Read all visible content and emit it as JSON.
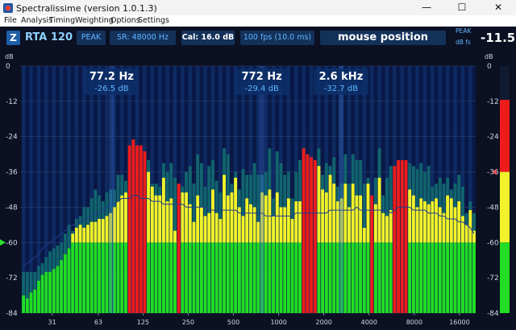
{
  "window": {
    "title": "Spectralissime (version 1.0.1.3)",
    "minimize_glyph": "—",
    "maximize_glyph": "☐",
    "close_glyph": "✕"
  },
  "menu": [
    "File",
    "Analysis",
    "Timing",
    "Weighting",
    "Options",
    "Settings"
  ],
  "toolbar": {
    "z_label": "Z",
    "rta_label": "RTA 120",
    "peak_button": "PEAK",
    "sample_rate": "SR: 48000 Hz",
    "calibration": "Cal:  16.0 dB",
    "fps": "100 fps (10.0 ms)",
    "mouse_position": "mouse position",
    "peak_label": "PEAK",
    "dbfs_label": "dB fs",
    "peak_value": "-11.5"
  },
  "colors": {
    "background": "#0d1428",
    "green": "#22dd22",
    "yellow": "#f2f22a",
    "red": "#ee1b1b",
    "teal": "#11646d",
    "accent": "#5fb6ff"
  },
  "chart_data": {
    "type": "bar",
    "x_scale": "log",
    "x_unit": "Hz",
    "xlim": [
      19,
      20500
    ],
    "ylim": [
      -84,
      0
    ],
    "y_unit": "dB",
    "y_ticks": [
      0,
      -12,
      -24,
      -36,
      -48,
      -60,
      -72,
      -84
    ],
    "x_tick_values": [
      31,
      63,
      125,
      250,
      500,
      1000,
      2000,
      4000,
      8000,
      16000
    ],
    "x_tick_labels": [
      "31",
      "63",
      "125",
      "250",
      "500",
      "1000",
      "2000",
      "4000",
      "8000",
      "16000"
    ],
    "axis_label": "dB",
    "green_threshold": -60,
    "yellow_threshold": -36,
    "num_bars": 120,
    "freq_start": 20,
    "freq_end": 20000,
    "bar_values": [
      -78,
      -79,
      -77,
      -76,
      -73,
      -71,
      -70,
      -70,
      -69,
      -68,
      -66,
      -64,
      -62,
      -57,
      -55,
      -54,
      -55,
      -54,
      -53,
      -53,
      -52,
      -52,
      -51,
      -50,
      -48,
      -46,
      -44,
      -43,
      -34,
      -35,
      -35,
      -34,
      -35,
      -36,
      -41,
      -44,
      -44,
      -38,
      -46,
      -45,
      -56,
      -55,
      -43,
      -43,
      -47,
      -53,
      -44,
      -48,
      -51,
      -50,
      -42,
      -50,
      -52,
      -37,
      -44,
      -43,
      -38,
      -48,
      -51,
      -45,
      -47,
      -48,
      -53,
      -43,
      -44,
      -42,
      -51,
      -43,
      -48,
      -48,
      -45,
      -52,
      -46,
      -46,
      -38,
      -32,
      -38,
      -46,
      -34,
      -42,
      -43,
      -37,
      -40,
      -46,
      -45,
      -40,
      -48,
      -40,
      -44,
      -44,
      -55,
      -40,
      -50,
      -47,
      -38,
      -50,
      -51,
      -49,
      -44,
      -34,
      -39,
      -36,
      -42,
      -44,
      -48,
      -45,
      -46,
      -47,
      -46,
      -45,
      -48,
      -50,
      -44,
      -45,
      -48,
      -46,
      -51,
      -54,
      -49,
      -56
    ],
    "peak_values": [
      -70,
      -70,
      -70,
      -70,
      -68,
      -67,
      -65,
      -63,
      -62,
      -61,
      -60,
      -57,
      -54,
      -56,
      -52,
      -51,
      -48,
      -48,
      -45,
      -42,
      -44,
      -46,
      -43,
      -42,
      -42,
      -37,
      -37,
      -39,
      -27,
      -25,
      -27,
      -27,
      -29,
      -32,
      -40,
      -40,
      -41,
      -33,
      -36,
      -33,
      -38,
      -40,
      -41,
      -36,
      -34,
      -40,
      -30,
      -33,
      -41,
      -34,
      -32,
      -39,
      -43,
      -28,
      -30,
      -40,
      -36,
      -42,
      -35,
      -37,
      -37,
      -33,
      -37,
      -37,
      -36,
      -28,
      -45,
      -29,
      -33,
      -37,
      -36,
      -45,
      -36,
      -32,
      -28,
      -30,
      -31,
      -32,
      -28,
      -37,
      -33,
      -34,
      -31,
      -41,
      -40,
      -30,
      -40,
      -30,
      -32,
      -32,
      -40,
      -38,
      -44,
      -38,
      -28,
      -44,
      -38,
      -34,
      -34,
      -32,
      -32,
      -32,
      -33,
      -34,
      -35,
      -33,
      -36,
      -34,
      -41,
      -40,
      -38,
      -40,
      -38,
      -42,
      -40,
      -37,
      -41,
      -50,
      -46,
      -50
    ],
    "red_bars": [
      28,
      29,
      30,
      31,
      32,
      41,
      74,
      75,
      76,
      77,
      92,
      98,
      99,
      100,
      101
    ],
    "avg_line": [
      -68,
      -67,
      -66,
      -65,
      -64,
      -62,
      -61,
      -60,
      -59,
      -58,
      -57,
      -56,
      -55,
      -54,
      -54,
      -53,
      -52,
      -52,
      -51,
      -50,
      -50,
      -49,
      -48,
      -47,
      -47,
      -46,
      -45,
      -45,
      -45,
      -44,
      -44,
      -45,
      -45,
      -45,
      -46,
      -46,
      -46,
      -47,
      -47,
      -47,
      -47,
      -47,
      -47,
      -48,
      -48,
      -48,
      -48,
      -48,
      -48,
      -49,
      -49,
      -49,
      -49,
      -49,
      -49,
      -49,
      -49,
      -50,
      -50,
      -50,
      -50,
      -50,
      -50,
      -50,
      -51,
      -51,
      -51,
      -51,
      -51,
      -51,
      -51,
      -51,
      -50,
      -50,
      -50,
      -50,
      -50,
      -50,
      -50,
      -50,
      -50,
      -49,
      -49,
      -49,
      -49,
      -49,
      -49,
      -49,
      -48,
      -49,
      -49,
      -49,
      -49,
      -49,
      -49,
      -49,
      -49,
      -50,
      -49,
      -48,
      -48,
      -48,
      -48,
      -49,
      -49,
      -49,
      -49,
      -50,
      -50,
      -50,
      -51,
      -51,
      -52,
      -52,
      -52,
      -53,
      -53,
      -54,
      -55,
      -57
    ],
    "markers": [
      {
        "freq": 77.2,
        "freq_label": "77.2 Hz",
        "level_label": "-26.5 dB"
      },
      {
        "freq": 772,
        "freq_label": "772 Hz",
        "level_label": "-29.4 dB"
      },
      {
        "freq": 2600,
        "freq_label": "2.6 kHz",
        "level_label": "-32.7 dB"
      }
    ],
    "meter": {
      "peak_level": -11.5,
      "marker_level": -36
    }
  }
}
